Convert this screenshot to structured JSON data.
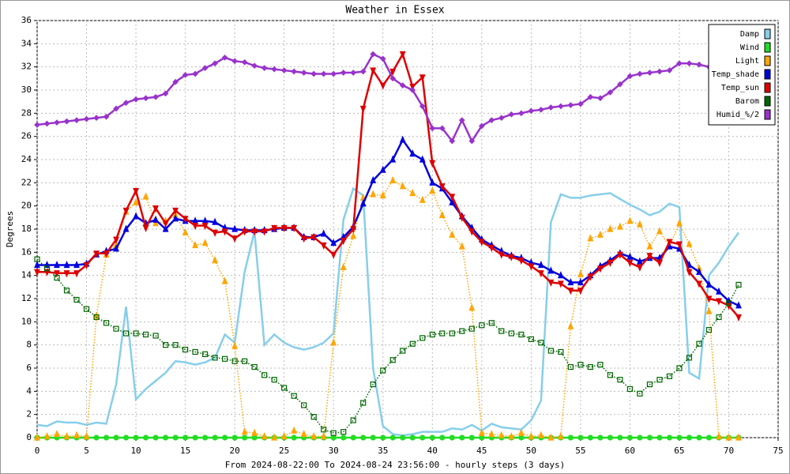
{
  "chart_data": {
    "type": "line",
    "title": "Weather in Essex",
    "ylabel": "Degrees",
    "xlabel": "From 2024-08-22:00 To 2024-08-24 23:56:00 - hourly steps (3 days)",
    "x": [
      0,
      1,
      2,
      3,
      4,
      5,
      6,
      7,
      8,
      9,
      10,
      11,
      12,
      13,
      14,
      15,
      16,
      17,
      18,
      19,
      20,
      21,
      22,
      23,
      24,
      25,
      26,
      27,
      28,
      29,
      30,
      31,
      32,
      33,
      34,
      35,
      36,
      37,
      38,
      39,
      40,
      41,
      42,
      43,
      44,
      45,
      46,
      47,
      48,
      49,
      50,
      51,
      52,
      53,
      54,
      55,
      56,
      57,
      58,
      59,
      60,
      61,
      62,
      63,
      64,
      65,
      66,
      67,
      68,
      69,
      70,
      71
    ],
    "xlim": [
      0,
      75
    ],
    "xticks": [
      0,
      5,
      10,
      15,
      20,
      25,
      30,
      35,
      40,
      45,
      50,
      55,
      60,
      65,
      70,
      75
    ],
    "ylim": [
      0,
      36
    ],
    "yticks": [
      0,
      2,
      4,
      6,
      8,
      10,
      12,
      14,
      16,
      18,
      20,
      22,
      24,
      26,
      28,
      30,
      32,
      34,
      36
    ],
    "grid": true,
    "legend": "upper right",
    "series": [
      {
        "name": "Damp",
        "color": "#87ceeb",
        "marker": "none",
        "line_style": "solid",
        "values": [
          1.1,
          1.0,
          1.4,
          1.3,
          1.3,
          1.1,
          1.3,
          1.2,
          4.6,
          11.3,
          3.3,
          4.2,
          4.9,
          5.6,
          6.6,
          6.5,
          6.3,
          6.5,
          6.9,
          8.9,
          8.2,
          14.3,
          17.8,
          8.0,
          8.9,
          8.2,
          7.8,
          7.6,
          7.8,
          8.2,
          9.0,
          18.8,
          21.5,
          20.9,
          6.0,
          1.0,
          0.3,
          0.2,
          0.3,
          0.5,
          0.5,
          0.5,
          0.8,
          0.7,
          1.1,
          0.6,
          1.2,
          0.9,
          0.8,
          0.7,
          1.5,
          3.2,
          18.6,
          21.0,
          20.7,
          20.7,
          20.9,
          21.0,
          21.1,
          20.6,
          20.1,
          19.7,
          19.2,
          19.5,
          20.2,
          19.9,
          5.6,
          5.1,
          14.0,
          15.1,
          16.5,
          17.7
        ]
      },
      {
        "name": "Wind",
        "color": "#22dd22",
        "marker": "circle",
        "line_style": "solid",
        "values": [
          0,
          0,
          0,
          0,
          0,
          0,
          0,
          0,
          0,
          0,
          0,
          0,
          0,
          0,
          0,
          0,
          0,
          0,
          0,
          0,
          0,
          0,
          0,
          0,
          0,
          0,
          0,
          0,
          0,
          0,
          0,
          0,
          0,
          0,
          0,
          0,
          0,
          0,
          0,
          0,
          0,
          0,
          0,
          0,
          0,
          0,
          0,
          0,
          0,
          0,
          0,
          0,
          0,
          0,
          0,
          0,
          0,
          0,
          0,
          0,
          0,
          0,
          0,
          0,
          0,
          0,
          0,
          0,
          0,
          0,
          0,
          0
        ]
      },
      {
        "name": "Light",
        "color": "#ffa500",
        "marker": "triangle",
        "line_style": "dotted",
        "values": [
          0,
          0.1,
          0.3,
          0.1,
          0.2,
          0.1,
          10.5,
          15.8,
          16.6,
          19.5,
          20.3,
          20.8,
          18.5,
          18.7,
          19.2,
          17.7,
          16.6,
          16.8,
          15.3,
          13.5,
          7.9,
          0.5,
          0.4,
          0.1,
          0,
          0.1,
          0.6,
          0.3,
          0.1,
          0.1,
          8.2,
          14.7,
          17.4,
          20.7,
          21.0,
          20.9,
          22.2,
          21.7,
          21.1,
          20.5,
          21.3,
          19.2,
          17.5,
          16.5,
          11.2,
          0.4,
          0.3,
          0.2,
          0.1,
          0.4,
          0.1,
          0.2,
          0,
          0.1,
          9.6,
          14.1,
          17.2,
          17.5,
          18.0,
          18.2,
          18.7,
          18.4,
          16.5,
          17.8,
          16.5,
          18.5,
          16.7,
          14.6,
          10.9,
          0.1,
          0,
          0
        ]
      },
      {
        "name": "Temp_shade",
        "color": "#0000dd",
        "marker": "triangle",
        "line_style": "solid",
        "values": [
          14.9,
          14.9,
          14.9,
          14.9,
          14.9,
          15.0,
          15.8,
          16.1,
          16.3,
          18.0,
          19.1,
          18.5,
          18.8,
          18.0,
          18.9,
          18.7,
          18.7,
          18.7,
          18.6,
          18.1,
          18.0,
          17.9,
          17.9,
          17.9,
          18.0,
          18.1,
          18.1,
          17.3,
          17.3,
          17.6,
          16.8,
          17.3,
          18.2,
          20.2,
          22.2,
          23.1,
          24.0,
          25.7,
          24.5,
          24.0,
          22.0,
          21.5,
          20.3,
          19.1,
          18.1,
          17.1,
          16.6,
          16.1,
          15.7,
          15.5,
          15.1,
          14.9,
          14.4,
          14.0,
          13.4,
          13.4,
          14.0,
          14.8,
          15.3,
          15.9,
          15.6,
          15.2,
          15.5,
          15.5,
          16.5,
          16.3,
          14.9,
          14.3,
          13.2,
          12.6,
          11.8,
          11.4
        ]
      },
      {
        "name": "Temp_sun",
        "color": "#dd0000",
        "marker": "down-triangle",
        "line_style": "solid",
        "values": [
          14.3,
          14.3,
          14.2,
          14.2,
          14.2,
          14.9,
          15.9,
          15.9,
          17.1,
          19.6,
          21.3,
          18.1,
          19.8,
          18.5,
          19.6,
          18.9,
          18.3,
          18.3,
          17.7,
          17.8,
          17.2,
          17.8,
          17.8,
          17.8,
          18.1,
          18.1,
          18.1,
          17.2,
          17.3,
          16.6,
          15.8,
          17.0,
          18.0,
          28.4,
          31.7,
          30.4,
          31.6,
          33.1,
          30.3,
          31.1,
          23.7,
          21.7,
          20.8,
          19.0,
          17.8,
          16.9,
          16.4,
          15.8,
          15.6,
          15.3,
          14.8,
          14.2,
          13.4,
          13.3,
          12.7,
          12.7,
          13.9,
          14.6,
          15.1,
          15.8,
          15.1,
          14.7,
          15.7,
          15.1,
          16.9,
          16.7,
          14.3,
          13.3,
          12.0,
          11.8,
          11.4,
          10.4
        ]
      },
      {
        "name": "Barom",
        "color": "#006600",
        "marker": "square",
        "line_style": "dotted",
        "values": [
          15.4,
          14.6,
          13.8,
          12.7,
          11.9,
          11.1,
          10.4,
          9.9,
          9.4,
          9.0,
          9.0,
          8.9,
          8.8,
          8.0,
          8.0,
          7.6,
          7.4,
          7.2,
          6.9,
          6.8,
          6.6,
          6.6,
          6.1,
          5.4,
          5.0,
          4.3,
          3.6,
          2.8,
          1.8,
          0.7,
          0.4,
          0.5,
          1.5,
          3.0,
          4.6,
          5.8,
          6.7,
          7.5,
          8.1,
          8.6,
          8.9,
          9.0,
          9.0,
          9.2,
          9.4,
          9.7,
          9.9,
          9.2,
          9.0,
          8.9,
          8.5,
          8.2,
          7.5,
          7.4,
          6.1,
          6.3,
          6.1,
          6.3,
          5.4,
          5.0,
          4.2,
          3.8,
          4.6,
          5.0,
          5.3,
          6.0,
          6.9,
          8.1,
          9.3,
          10.4,
          11.6,
          13.2
        ]
      },
      {
        "name": "Humid_%/2",
        "color": "#9933cc",
        "marker": "diamond",
        "line_style": "solid",
        "values": [
          27.0,
          27.1,
          27.2,
          27.3,
          27.4,
          27.5,
          27.6,
          27.7,
          28.4,
          28.9,
          29.2,
          29.3,
          29.4,
          29.7,
          30.7,
          31.3,
          31.4,
          31.9,
          32.3,
          32.8,
          32.5,
          32.4,
          32.1,
          31.9,
          31.8,
          31.7,
          31.6,
          31.5,
          31.4,
          31.4,
          31.4,
          31.5,
          31.5,
          31.6,
          33.1,
          32.7,
          31.0,
          30.4,
          30.0,
          28.6,
          26.7,
          26.7,
          25.6,
          27.4,
          25.6,
          26.9,
          27.4,
          27.6,
          27.9,
          28.0,
          28.2,
          28.3,
          28.5,
          28.6,
          28.7,
          28.8,
          29.4,
          29.3,
          29.8,
          30.5,
          31.2,
          31.4,
          31.5,
          31.6,
          31.7,
          32.3,
          32.3,
          32.2,
          32.0,
          31.8,
          31.7,
          31.6
        ]
      }
    ]
  }
}
